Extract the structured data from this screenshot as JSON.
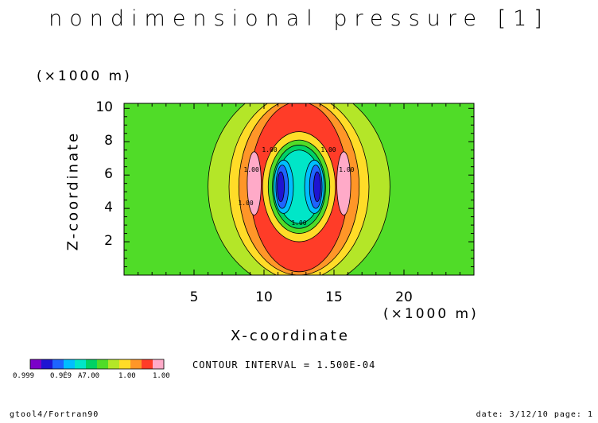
{
  "chart_data": {
    "type": "heatmap",
    "title": "nondimensional pressure [1]",
    "xlabel": "X-coordinate",
    "ylabel": "Z-coordinate",
    "x_unit": "(×1000 m)",
    "z_unit": "(×1000 m)",
    "xlim": [
      0,
      25
    ],
    "ylim": [
      0,
      10.3
    ],
    "x_ticks": [
      "5",
      "10",
      "15",
      "20"
    ],
    "y_ticks": [
      "2",
      "4",
      "6",
      "8",
      "10"
    ],
    "contour_interval": "CONTOUR INTERVAL = 1.500E-04",
    "contour_line_label": "1.00",
    "grid": false,
    "colorbar_labels": [
      "0.999",
      "0.9É9",
      "A7.00",
      "1.00",
      "1.00"
    ],
    "colors": [
      "#7b00c8",
      "#1e14d2",
      "#1e64ff",
      "#00beff",
      "#00e6c8",
      "#00d264",
      "#50dc28",
      "#b4e628",
      "#ffdc28",
      "#ff9628",
      "#ff3c28",
      "#ffaac8"
    ],
    "regions": [
      {
        "level": 6,
        "x": [
          0,
          25
        ],
        "z": [
          0,
          10.3
        ]
      },
      {
        "level": 7,
        "cx": 12.5,
        "cz": 5.3,
        "rx": 6.5,
        "rz": 6.2
      },
      {
        "level": 8,
        "cx": 12.5,
        "cz": 5.3,
        "rx": 5.0,
        "rz": 5.6
      },
      {
        "level": 9,
        "cx": 12.5,
        "cz": 5.3,
        "rx": 4.3,
        "rz": 5.3
      },
      {
        "level": 10,
        "cx": 12.5,
        "cz": 5.3,
        "rx": 3.5,
        "rz": 5.1
      },
      {
        "level": 8,
        "cx": 12.5,
        "cz": 5.3,
        "rx": 2.6,
        "rz": 3.3
      },
      {
        "level": 6,
        "cx": 12.5,
        "cz": 5.3,
        "rx": 2.2,
        "rz": 2.8
      },
      {
        "level": 5,
        "cx": 12.5,
        "cz": 5.3,
        "rx": 1.9,
        "rz": 2.5
      },
      {
        "level": 4,
        "cx": 12.5,
        "cz": 5.3,
        "rx": 1.6,
        "rz": 2.2
      },
      {
        "level": 3,
        "cx": 11.4,
        "cz": 5.3,
        "rx": 0.7,
        "rz": 1.6
      },
      {
        "level": 3,
        "cx": 13.6,
        "cz": 5.3,
        "rx": 0.7,
        "rz": 1.6
      },
      {
        "level": 2,
        "cx": 11.3,
        "cz": 5.3,
        "rx": 0.45,
        "rz": 1.3
      },
      {
        "level": 2,
        "cx": 13.7,
        "cz": 5.3,
        "rx": 0.45,
        "rz": 1.3
      },
      {
        "level": 1,
        "cx": 11.2,
        "cz": 5.3,
        "rx": 0.25,
        "rz": 0.9
      },
      {
        "level": 1,
        "cx": 13.8,
        "cz": 5.3,
        "rx": 0.25,
        "rz": 0.9
      },
      {
        "level": 11,
        "cx": 9.3,
        "cz": 5.5,
        "rx": 0.5,
        "rz": 1.9
      },
      {
        "level": 11,
        "cx": 15.7,
        "cz": 5.5,
        "rx": 0.5,
        "rz": 1.9
      }
    ]
  },
  "footer": {
    "left": "gtool4/Fortran90",
    "right": "date: 3/12/10 page: 1"
  }
}
